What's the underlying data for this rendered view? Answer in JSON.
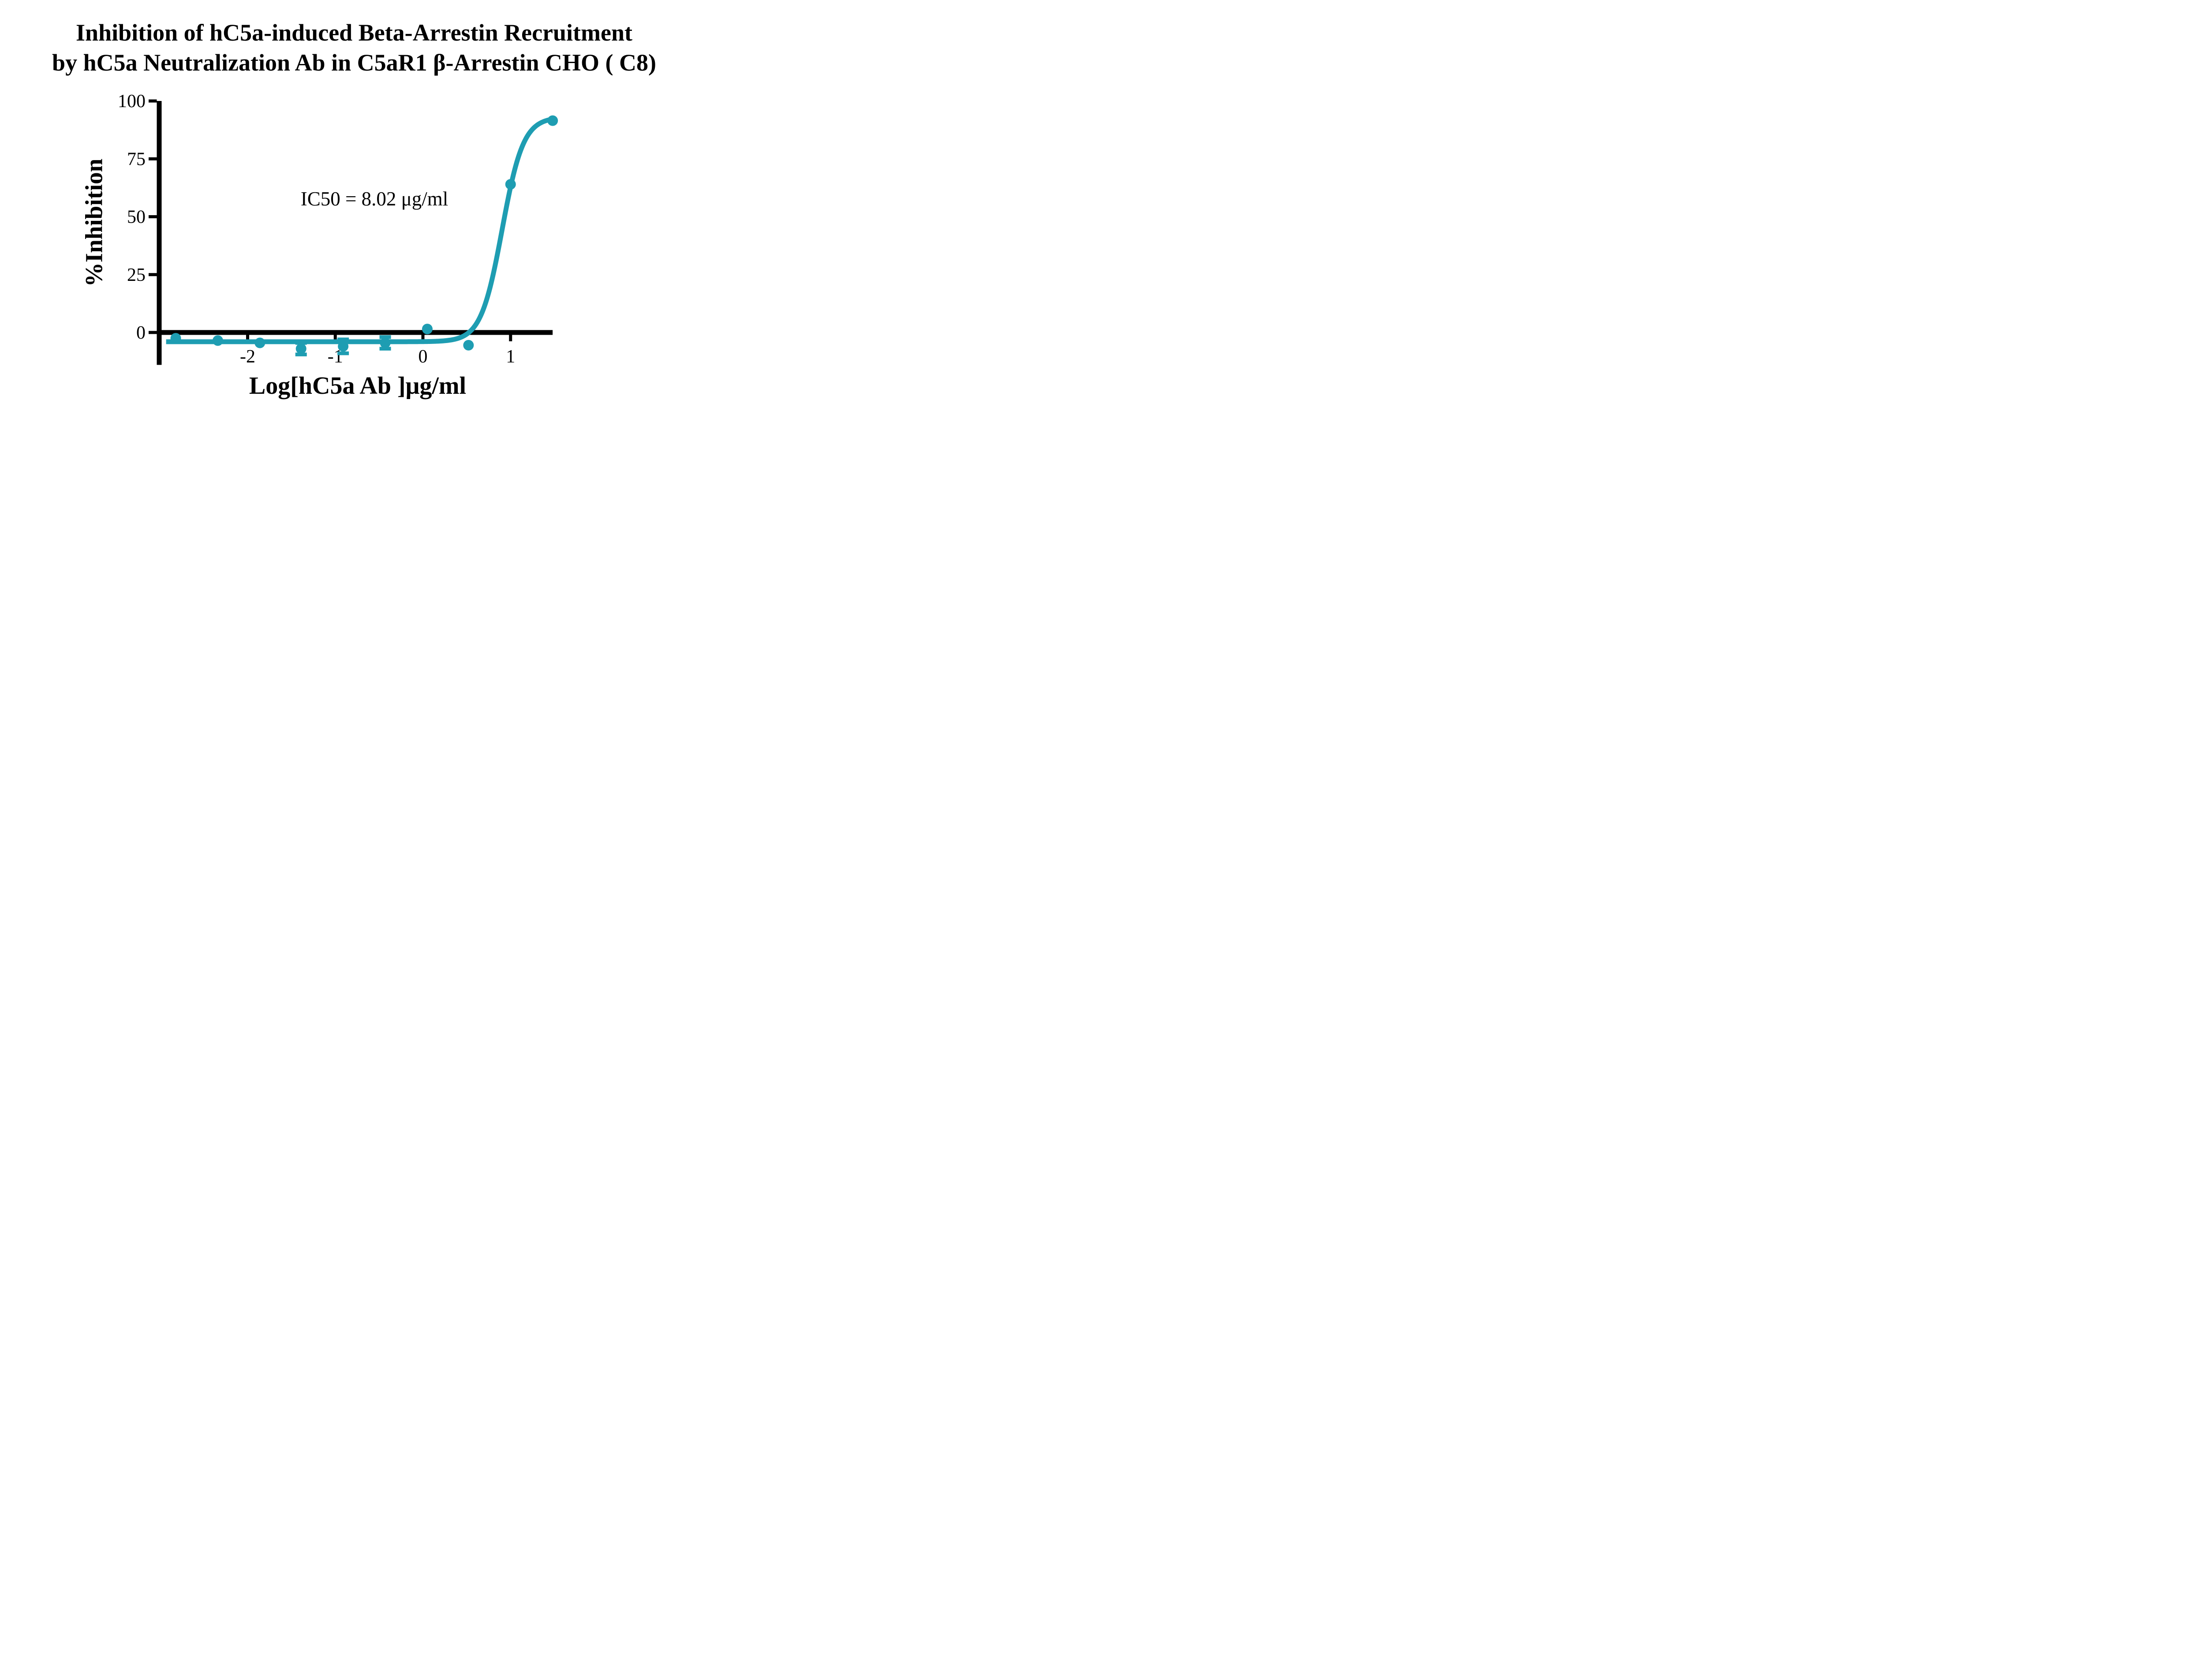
{
  "figure": {
    "title_line1": "Inhibition of hC5a-induced Beta-Arrestin Recruitment",
    "title_line2": "by hC5a Neutralization Ab in C5aR1 β-Arrestin CHO ( C8)"
  },
  "chart_data": {
    "type": "scatter",
    "title": "Inhibition of hC5a-induced Beta-Arrestin Recruitment by hC5a Neutralization Ab in C5aR1 β-Arrestin CHO ( C8)",
    "xlabel": "Log[hC5a Ab ]μg/ml",
    "ylabel": "%Inhibition",
    "annotation": "IC50 = 8.02 μg/ml",
    "ic50_ug_ml": 8.02,
    "grid": false,
    "legend": false,
    "x_axis": {
      "min": -3.0,
      "max": 1.5,
      "ticks": [
        -2,
        -1,
        0,
        1
      ]
    },
    "y_axis": {
      "min": 0,
      "max": 100,
      "ticks": [
        0,
        25,
        50,
        75,
        100
      ],
      "axis_extends_below_to": -14
    },
    "colors": {
      "series": "#1E9DB2",
      "axis": "#000000",
      "background": "#ffffff"
    },
    "series": [
      {
        "name": "hC5a Neutralization Ab",
        "marker": "circle",
        "color": "#1E9DB2",
        "points": [
          {
            "x": -2.82,
            "y": -2.5
          },
          {
            "x": -2.34,
            "y": -3.5
          },
          {
            "x": -1.86,
            "y": -4.5
          },
          {
            "x": -1.39,
            "y": -7.0,
            "err": 2.5
          },
          {
            "x": -0.91,
            "y": -6.0,
            "err": 3.0
          },
          {
            "x": -0.43,
            "y": -4.5,
            "err": 2.5
          },
          {
            "x": 0.05,
            "y": 1.5
          },
          {
            "x": 0.52,
            "y": -5.5
          },
          {
            "x": 1.0,
            "y": 64.0
          },
          {
            "x": 1.48,
            "y": 91.5
          }
        ],
        "fit": {
          "model": "four-parameter logistic",
          "bottom": -4,
          "top": 93,
          "hill_slope": 3.6,
          "log_ic50": 0.904,
          "curve_x_start": -2.93,
          "curve_x_end": 1.48
        }
      }
    ]
  }
}
